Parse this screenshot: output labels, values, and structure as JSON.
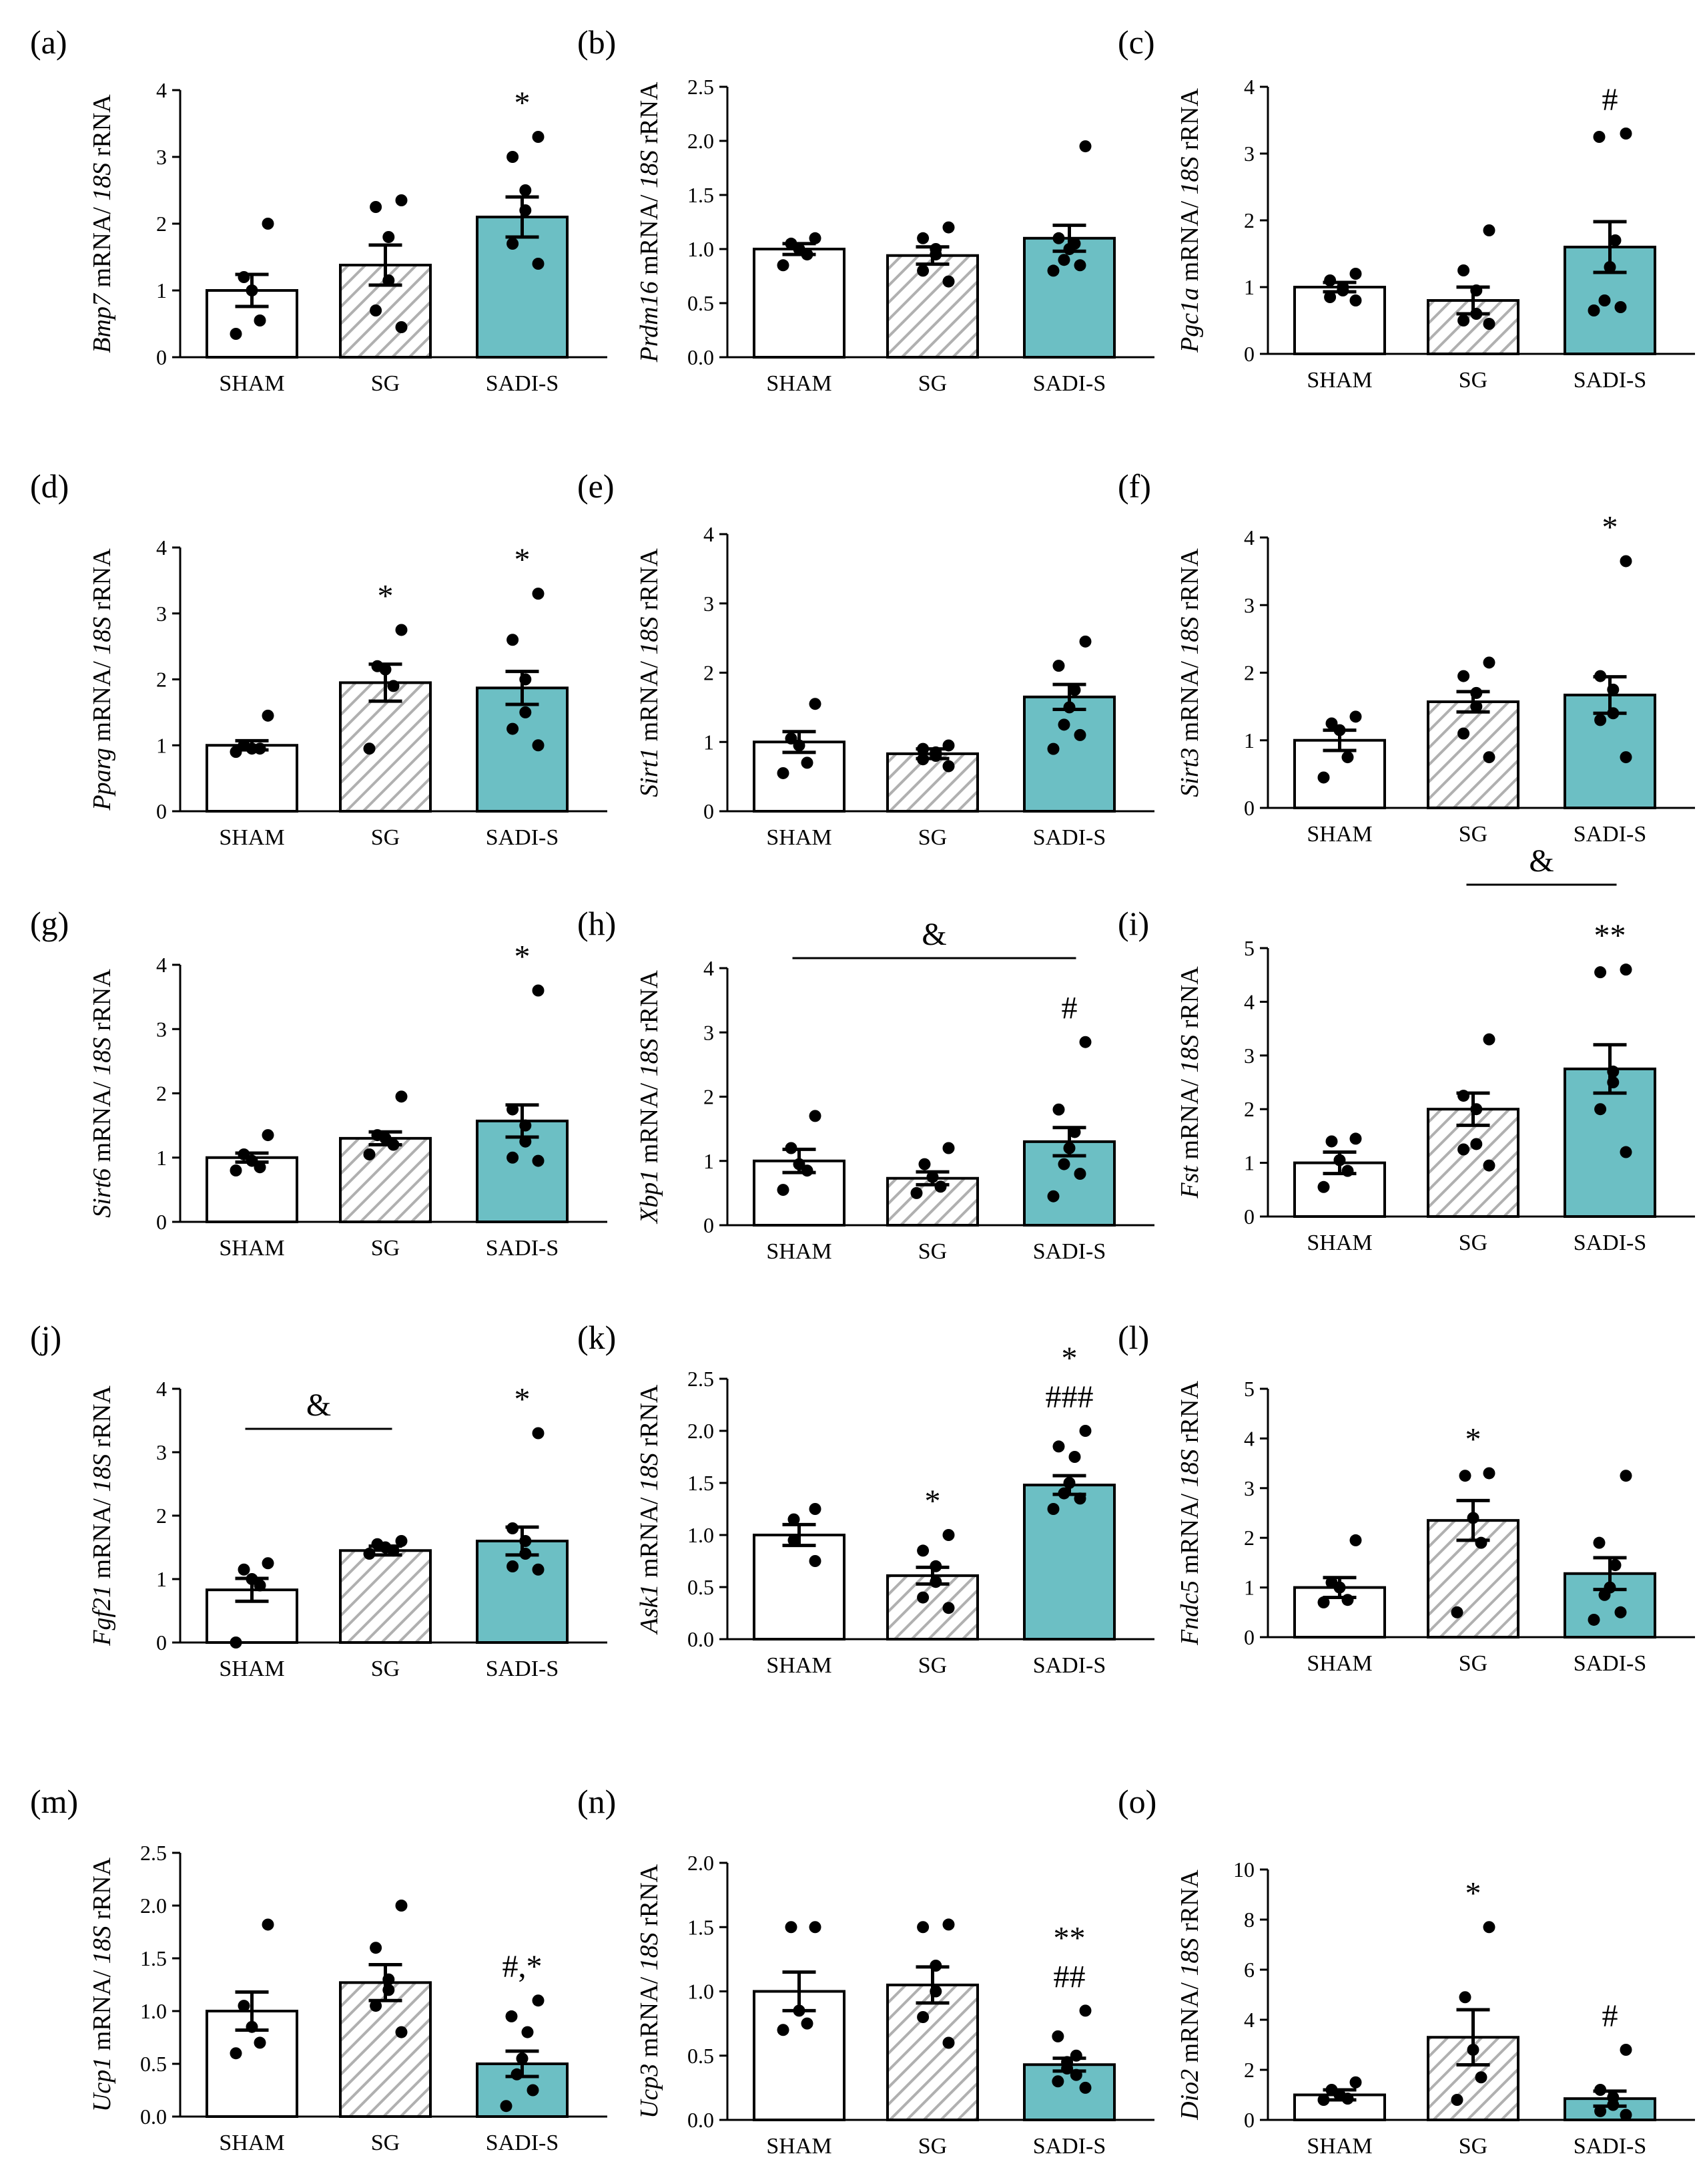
{
  "categories": [
    "SHAM",
    "SG",
    "SADI-S"
  ],
  "colors": {
    "sham": "#ffffff",
    "sg_hatch": "#b0b0b0",
    "sadi_s": "#6cbfc4"
  },
  "chart_data": [
    {
      "type": "bar",
      "panel": "(a)",
      "gene": "Bmp7",
      "ylabel_rest": " mRNA/ ",
      "ref": "18S",
      "ylabel_suffix": " rRNA",
      "ylim": [
        0,
        4
      ],
      "ticks": [
        "0",
        "1",
        "2",
        "3",
        "4"
      ],
      "categories": [
        "SHAM",
        "SG",
        "SADI-S"
      ],
      "values": [
        1.0,
        1.38,
        2.1
      ],
      "sem": [
        0.24,
        0.3,
        0.3
      ],
      "points": [
        [
          2.0,
          1.2,
          1.0,
          0.55,
          0.35
        ],
        [
          2.35,
          2.25,
          1.8,
          1.15,
          0.7,
          0.45
        ],
        [
          3.3,
          3.0,
          2.5,
          2.2,
          1.7,
          1.4
        ]
      ],
      "annotations": [
        "",
        "",
        "*"
      ],
      "brackets": []
    },
    {
      "type": "bar",
      "panel": "(b)",
      "gene": "Prdm16",
      "ylabel_rest": " mRNA/ ",
      "ref": "18S",
      "ylabel_suffix": " rRNA",
      "ylim": [
        0,
        2.5
      ],
      "ticks": [
        "0.0",
        "0.5",
        "1.0",
        "1.5",
        "2.0",
        "2.5"
      ],
      "categories": [
        "SHAM",
        "SG",
        "SADI-S"
      ],
      "values": [
        1.0,
        0.94,
        1.1
      ],
      "sem": [
        0.05,
        0.08,
        0.12
      ],
      "points": [
        [
          1.1,
          1.05,
          1.0,
          0.95,
          0.85
        ],
        [
          1.2,
          1.1,
          1.0,
          0.95,
          0.8,
          0.7
        ],
        [
          1.95,
          1.1,
          1.05,
          1.0,
          0.9,
          0.85,
          0.8
        ]
      ],
      "annotations": [
        "",
        "",
        ""
      ],
      "brackets": []
    },
    {
      "type": "bar",
      "panel": "(c)",
      "gene": "Pgc1a",
      "ylabel_rest": " mRNA/ ",
      "ref": "18S",
      "ylabel_suffix": " rRNA",
      "ylim": [
        0,
        4
      ],
      "ticks": [
        "0",
        "1",
        "2",
        "3",
        "4"
      ],
      "categories": [
        "SHAM",
        "SG",
        "SADI-S"
      ],
      "values": [
        1.0,
        0.8,
        1.6
      ],
      "sem": [
        0.07,
        0.2,
        0.38
      ],
      "points": [
        [
          1.2,
          1.1,
          1.0,
          0.95,
          0.85,
          0.8
        ],
        [
          1.85,
          1.25,
          0.95,
          0.6,
          0.5,
          0.45
        ],
        [
          3.3,
          3.25,
          1.7,
          1.3,
          0.8,
          0.7,
          0.65
        ]
      ],
      "annotations": [
        "",
        "",
        "#"
      ],
      "brackets": []
    },
    {
      "type": "bar",
      "panel": "(d)",
      "gene": "Pparg",
      "ylabel_rest": " mRNA/ ",
      "ref": "18S",
      "ylabel_suffix": " rRNA",
      "ylim": [
        0,
        4
      ],
      "ticks": [
        "0",
        "1",
        "2",
        "3",
        "4"
      ],
      "categories": [
        "SHAM",
        "SG",
        "SADI-S"
      ],
      "values": [
        1.0,
        1.95,
        1.87
      ],
      "sem": [
        0.07,
        0.28,
        0.25
      ],
      "points": [
        [
          1.45,
          1.0,
          0.95,
          0.95,
          0.9
        ],
        [
          2.75,
          2.2,
          2.15,
          1.9,
          0.95
        ],
        [
          3.3,
          2.6,
          2.0,
          1.5,
          1.25,
          1.0
        ]
      ],
      "annotations": [
        "",
        "*",
        "*"
      ],
      "brackets": []
    },
    {
      "type": "bar",
      "panel": "(e)",
      "gene": "Sirt1",
      "ylabel_rest": " mRNA/ ",
      "ref": "18S",
      "ylabel_suffix": " rRNA",
      "ylim": [
        0,
        4
      ],
      "ticks": [
        "0",
        "1",
        "2",
        "3",
        "4"
      ],
      "categories": [
        "SHAM",
        "SG",
        "SADI-S"
      ],
      "values": [
        1.0,
        0.83,
        1.65
      ],
      "sem": [
        0.15,
        0.07,
        0.18
      ],
      "points": [
        [
          1.55,
          1.05,
          0.95,
          0.7,
          0.55
        ],
        [
          0.95,
          0.9,
          0.85,
          0.8,
          0.75,
          0.65
        ],
        [
          2.45,
          2.1,
          1.75,
          1.5,
          1.25,
          1.1,
          0.9
        ]
      ],
      "annotations": [
        "",
        "",
        ""
      ],
      "brackets": []
    },
    {
      "type": "bar",
      "panel": "(f)",
      "gene": "Sirt3",
      "ylabel_rest": " mRNA/ ",
      "ref": "18S",
      "ylabel_suffix": " rRNA",
      "ylim": [
        0,
        4
      ],
      "ticks": [
        "0",
        "1",
        "2",
        "3",
        "4"
      ],
      "categories": [
        "SHAM",
        "SG",
        "SADI-S"
      ],
      "values": [
        1.0,
        1.57,
        1.67
      ],
      "sem": [
        0.15,
        0.15,
        0.27
      ],
      "points": [
        [
          1.35,
          1.25,
          1.15,
          0.75,
          0.45
        ],
        [
          2.15,
          1.95,
          1.7,
          1.5,
          1.1,
          0.75
        ],
        [
          3.65,
          1.95,
          1.75,
          1.4,
          1.3,
          0.75
        ]
      ],
      "annotations": [
        "",
        "",
        "*"
      ],
      "brackets": []
    },
    {
      "type": "bar",
      "panel": "(g)",
      "gene": "Sirt6",
      "ylabel_rest": " mRNA/ ",
      "ref": "18S",
      "ylabel_suffix": " rRNA",
      "ylim": [
        0,
        4
      ],
      "ticks": [
        "0",
        "1",
        "2",
        "3",
        "4"
      ],
      "categories": [
        "SHAM",
        "SG",
        "SADI-S"
      ],
      "values": [
        1.0,
        1.3,
        1.57
      ],
      "sem": [
        0.07,
        0.1,
        0.25
      ],
      "points": [
        [
          1.35,
          1.05,
          0.95,
          0.85,
          0.8
        ],
        [
          1.95,
          1.35,
          1.3,
          1.2,
          1.05
        ],
        [
          3.6,
          1.75,
          1.5,
          1.25,
          1.0,
          0.95
        ]
      ],
      "annotations": [
        "",
        "",
        "*"
      ],
      "brackets": []
    },
    {
      "type": "bar",
      "panel": "(h)",
      "gene": "Xbp1",
      "ylabel_rest": " mRNA/ ",
      "ref": "18S",
      "ylabel_suffix": " rRNA",
      "ylim": [
        0,
        4
      ],
      "ticks": [
        "0",
        "1",
        "2",
        "3",
        "4"
      ],
      "categories": [
        "SHAM",
        "SG",
        "SADI-S"
      ],
      "values": [
        1.0,
        0.73,
        1.3
      ],
      "sem": [
        0.18,
        0.1,
        0.22
      ],
      "points": [
        [
          1.7,
          1.2,
          0.95,
          0.85,
          0.55
        ],
        [
          1.2,
          0.95,
          0.75,
          0.6,
          0.5
        ],
        [
          2.85,
          1.8,
          1.45,
          1.2,
          0.95,
          0.8,
          0.45
        ]
      ],
      "annotations": [
        "",
        "",
        "#"
      ],
      "brackets": [
        {
          "from": 0,
          "to": 2,
          "label": "&"
        }
      ]
    },
    {
      "type": "bar",
      "panel": "(i)",
      "gene": "Fst",
      "ylabel_rest": " mRNA/ ",
      "ref": "18S",
      "ylabel_suffix": " rRNA",
      "ylim": [
        0,
        5
      ],
      "ticks": [
        "0",
        "1",
        "2",
        "3",
        "4",
        "5"
      ],
      "categories": [
        "SHAM",
        "SG",
        "SADI-S"
      ],
      "values": [
        1.0,
        2.0,
        2.75
      ],
      "sem": [
        0.2,
        0.3,
        0.45
      ],
      "points": [
        [
          1.45,
          1.4,
          1.05,
          0.85,
          0.55
        ],
        [
          3.3,
          2.25,
          2.0,
          1.35,
          1.25,
          0.95
        ],
        [
          4.6,
          4.55,
          2.7,
          2.5,
          2.0,
          1.2
        ]
      ],
      "annotations": [
        "",
        "",
        "**"
      ],
      "brackets": [
        {
          "from": 1,
          "to": 2,
          "label": "&"
        }
      ]
    },
    {
      "type": "bar",
      "panel": "(j)",
      "gene": "Fgf21",
      "ylabel_rest": " mRNA/ ",
      "ref": "18S",
      "ylabel_suffix": " rRNA",
      "ylim": [
        0,
        4
      ],
      "ticks": [
        "0",
        "1",
        "2",
        "3",
        "4"
      ],
      "categories": [
        "SHAM",
        "SG",
        "SADI-S"
      ],
      "values": [
        0.83,
        1.45,
        1.6
      ],
      "sem": [
        0.18,
        0.07,
        0.22
      ],
      "points": [
        [
          1.25,
          1.15,
          1.0,
          0.9,
          0.0
        ],
        [
          1.6,
          1.55,
          1.5,
          1.45,
          1.4
        ],
        [
          3.3,
          1.8,
          1.6,
          1.4,
          1.2,
          1.15
        ]
      ],
      "annotations": [
        "",
        "",
        "*"
      ],
      "brackets": [
        {
          "from": 0,
          "to": 1,
          "label": "&"
        }
      ]
    },
    {
      "type": "bar",
      "panel": "(k)",
      "gene": "Ask1",
      "ylabel_rest": " mRNA/ ",
      "ref": "18S",
      "ylabel_suffix": " rRNA",
      "ylim": [
        0,
        2.5
      ],
      "ticks": [
        "0.0",
        "0.5",
        "1.0",
        "1.5",
        "2.0",
        "2.5"
      ],
      "categories": [
        "SHAM",
        "SG",
        "SADI-S"
      ],
      "values": [
        1.0,
        0.61,
        1.48
      ],
      "sem": [
        0.1,
        0.08,
        0.09
      ],
      "points": [
        [
          1.25,
          1.15,
          0.95,
          0.75
        ],
        [
          1.0,
          0.85,
          0.7,
          0.55,
          0.4,
          0.3
        ],
        [
          2.0,
          1.85,
          1.75,
          1.5,
          1.4,
          1.35,
          1.25
        ]
      ],
      "annotations": [
        "",
        "*",
        "*\n###"
      ],
      "brackets": []
    },
    {
      "type": "bar",
      "panel": "(l)",
      "gene": "Fndc5",
      "ylabel_rest": " mRNA/ ",
      "ref": "18S",
      "ylabel_suffix": " rRNA",
      "ylim": [
        0,
        5
      ],
      "ticks": [
        "0",
        "1",
        "2",
        "3",
        "4",
        "5"
      ],
      "categories": [
        "SHAM",
        "SG",
        "SADI-S"
      ],
      "values": [
        1.0,
        2.35,
        1.28
      ],
      "sem": [
        0.2,
        0.4,
        0.32
      ],
      "points": [
        [
          1.95,
          1.1,
          1.0,
          0.75,
          0.7
        ],
        [
          3.3,
          3.25,
          2.4,
          1.9,
          0.5
        ],
        [
          3.25,
          1.9,
          1.45,
          1.0,
          0.85,
          0.5,
          0.35
        ]
      ],
      "annotations": [
        "",
        "*",
        ""
      ],
      "brackets": []
    },
    {
      "type": "bar",
      "panel": "(m)",
      "gene": "Ucp1",
      "ylabel_rest": " mRNA/ ",
      "ref": "18S",
      "ylabel_suffix": " rRNA",
      "ylim": [
        0,
        2.5
      ],
      "ticks": [
        "0.0",
        "0.5",
        "1.0",
        "1.5",
        "2.0",
        "2.5"
      ],
      "categories": [
        "SHAM",
        "SG",
        "SADI-S"
      ],
      "values": [
        1.0,
        1.27,
        0.5
      ],
      "sem": [
        0.18,
        0.17,
        0.12
      ],
      "points": [
        [
          1.82,
          1.05,
          0.85,
          0.7,
          0.6
        ],
        [
          2.0,
          1.6,
          1.3,
          1.2,
          1.05,
          0.8
        ],
        [
          1.1,
          0.95,
          0.8,
          0.55,
          0.4,
          0.25,
          0.1
        ]
      ],
      "annotations": [
        "",
        "",
        "#,*"
      ],
      "brackets": []
    },
    {
      "type": "bar",
      "panel": "(n)",
      "gene": "Ucp3",
      "ylabel_rest": " mRNA/ ",
      "ref": "18S",
      "ylabel_suffix": " rRNA",
      "ylim": [
        0,
        2.0
      ],
      "ticks": [
        "0.0",
        "0.5",
        "1.0",
        "1.5",
        "2.0"
      ],
      "categories": [
        "SHAM",
        "SG",
        "SADI-S"
      ],
      "values": [
        1.0,
        1.05,
        0.43
      ],
      "sem": [
        0.15,
        0.14,
        0.05
      ],
      "points": [
        [
          1.5,
          1.5,
          0.85,
          0.75,
          0.7
        ],
        [
          1.52,
          1.5,
          1.2,
          1.0,
          0.8,
          0.6
        ],
        [
          0.85,
          0.65,
          0.5,
          0.45,
          0.4,
          0.35,
          0.3,
          0.25
        ]
      ],
      "annotations": [
        "",
        "",
        "**\n##"
      ],
      "brackets": []
    },
    {
      "type": "bar",
      "panel": "(o)",
      "gene": "Dio2",
      "ylabel_rest": " mRNA/ ",
      "ref": "18S",
      "ylabel_suffix": " rRNA",
      "ylim": [
        0,
        10
      ],
      "ticks": [
        "0",
        "2",
        "4",
        "6",
        "8",
        "10"
      ],
      "categories": [
        "SHAM",
        "SG",
        "SADI-S"
      ],
      "values": [
        1.0,
        3.3,
        0.85
      ],
      "sem": [
        0.2,
        1.1,
        0.3
      ],
      "points": [
        [
          1.5,
          1.2,
          1.0,
          0.85,
          0.8
        ],
        [
          7.7,
          4.9,
          2.8,
          1.7,
          0.8
        ],
        [
          2.8,
          1.2,
          0.9,
          0.6,
          0.35,
          0.2
        ]
      ],
      "annotations": [
        "",
        "*",
        "#"
      ],
      "brackets": []
    }
  ]
}
